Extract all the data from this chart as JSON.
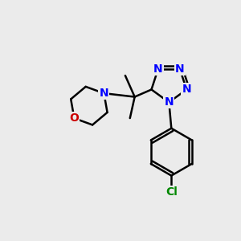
{
  "bg_color": "#ebebeb",
  "bond_color": "#000000",
  "bond_width": 1.8,
  "atom_colors": {
    "N": "#0000ff",
    "O": "#cc0000",
    "Cl": "#008800",
    "C": "#000000"
  },
  "font_size_atom": 10,
  "font_size_small": 8
}
